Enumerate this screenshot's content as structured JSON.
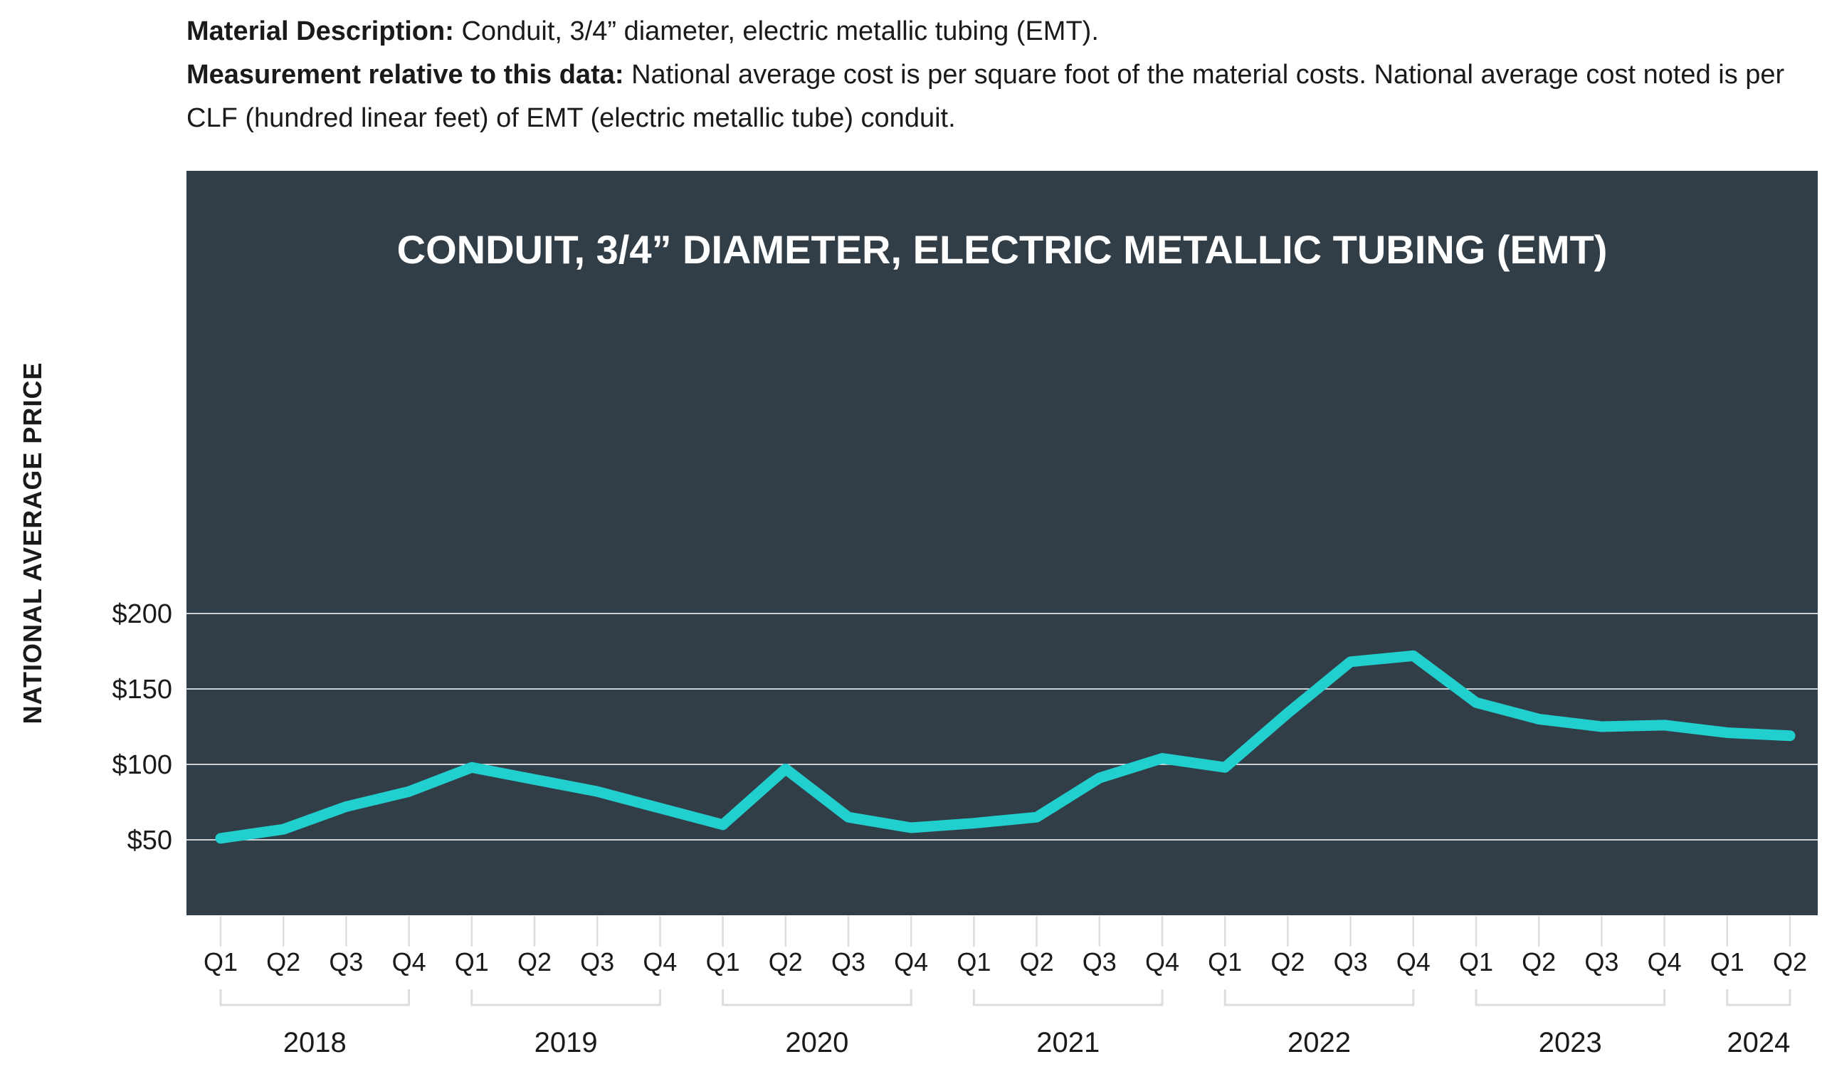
{
  "description": {
    "material_label": "Material Description:",
    "material_text": "Conduit, 3/4” diameter, electric metallic tubing (EMT).",
    "measure_label": "Measurement relative to this data:",
    "measure_text": "National average cost is per square foot of the material costs. National average cost noted is per CLF (hundred linear feet) of EMT (electric metallic tube) conduit."
  },
  "colors": {
    "panel": "#323e47",
    "line": "#22cfcf",
    "grid": "#ffffff",
    "bracket": "#dddddd"
  },
  "chart_data": {
    "type": "line",
    "title": "CONDUIT, 3/4” DIAMETER, ELECTRIC METALLIC TUBING (EMT)",
    "ylabel": "NATIONAL AVERAGE PRICE",
    "xlabel": "",
    "ylim": [
      0,
      200
    ],
    "yticks": [
      50,
      100,
      150,
      200
    ],
    "ytick_labels": [
      "$50",
      "$100",
      "$150",
      "$200"
    ],
    "grid": true,
    "categories": [
      "Q1",
      "Q2",
      "Q3",
      "Q4",
      "Q1",
      "Q2",
      "Q3",
      "Q4",
      "Q1",
      "Q2",
      "Q3",
      "Q4",
      "Q1",
      "Q2",
      "Q3",
      "Q4",
      "Q1",
      "Q2",
      "Q3",
      "Q4",
      "Q1",
      "Q2",
      "Q3",
      "Q4",
      "Q1",
      "Q2"
    ],
    "years": [
      {
        "label": "2018",
        "start": 0,
        "end": 3
      },
      {
        "label": "2019",
        "start": 4,
        "end": 7
      },
      {
        "label": "2020",
        "start": 8,
        "end": 11
      },
      {
        "label": "2021",
        "start": 12,
        "end": 15
      },
      {
        "label": "2022",
        "start": 16,
        "end": 19
      },
      {
        "label": "2023",
        "start": 20,
        "end": 23
      },
      {
        "label": "2024",
        "start": 24,
        "end": 25
      }
    ],
    "series": [
      {
        "values": [
          51,
          57,
          72,
          82,
          98,
          90,
          82,
          71,
          60,
          97,
          65,
          58,
          61,
          65,
          91,
          104,
          98,
          134,
          168,
          172,
          141,
          130,
          125,
          126,
          121,
          119
        ]
      }
    ]
  }
}
